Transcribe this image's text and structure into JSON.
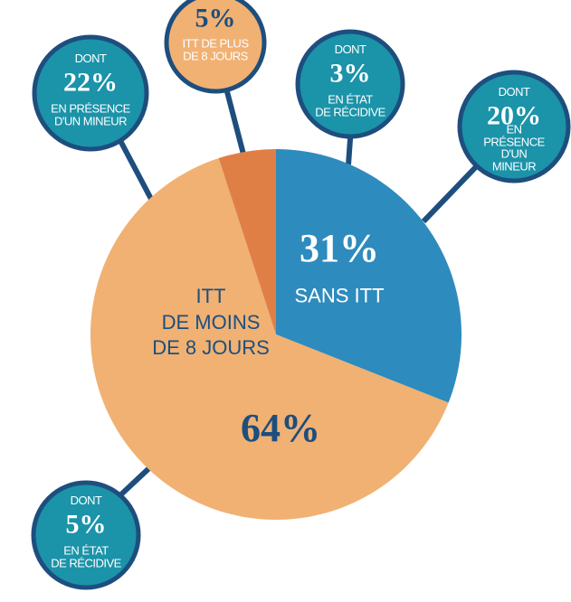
{
  "chart_data": {
    "type": "pie",
    "categories": [
      "SANS ITT",
      "ITT\nDE MOINS\nDE 8 JOURS",
      "ITT DE PLUS\nDE 8 JOURS"
    ],
    "values": [
      31,
      64,
      5
    ],
    "value_labels": [
      "31%",
      "64%",
      "5%"
    ],
    "colors": [
      "#2e8bbd",
      "#f0b173",
      "#e07f45"
    ],
    "annotations": [
      {
        "prefix": "DONT",
        "label": "22%",
        "text": "EN PRÉSENCE\nD'UN MINEUR"
      },
      {
        "prefix": "DONT",
        "label": "3%",
        "text": "EN ÉTAT\nDE RÉCIDIVE"
      },
      {
        "prefix": "DONT",
        "label": "20%",
        "text": "EN PRÉSENCE\nD'UN MINEUR"
      },
      {
        "prefix": "DONT",
        "label": "5%",
        "text": "EN ÉTAT\nDE RÉCIDIVE"
      }
    ]
  }
}
